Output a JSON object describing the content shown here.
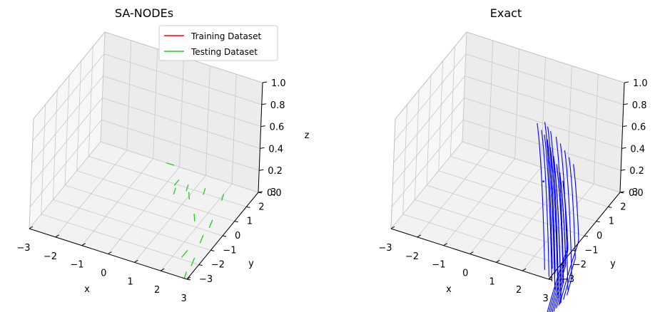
{
  "chart_data": [
    {
      "type": "line3d",
      "title": "SA-NODEs",
      "xlabel": "x",
      "ylabel": "y",
      "zlabel": "z",
      "xlim": [
        -3,
        3
      ],
      "ylim": [
        -3,
        3
      ],
      "zlim": [
        0,
        1
      ],
      "x_ticks": [
        "−3",
        "−2",
        "−1",
        "0",
        "1",
        "2",
        "3"
      ],
      "y_ticks": [
        "−3",
        "−2",
        "−1",
        "0",
        "1",
        "2",
        "3"
      ],
      "z_ticks": [
        "0.0",
        "0.2",
        "0.4",
        "0.6",
        "0.8",
        "1.0"
      ],
      "legend": {
        "placement": "top-right",
        "entries": [
          {
            "label": "Training Dataset",
            "color": "#ff0000"
          },
          {
            "label": "Testing Dataset",
            "color": "#22cc22"
          }
        ]
      },
      "series": [
        {
          "name": "Testing Dataset",
          "color": "#22cc22",
          "segments": [
            [
              [
                -0.2,
                3.0,
                0.0
              ],
              [
                -0.5,
                3.0,
                0.0
              ]
            ],
            [
              [
                0.3,
                2.3,
                0.0
              ],
              [
                0.3,
                1.9,
                0.0
              ]
            ],
            [
              [
                0.4,
                1.8,
                0.0
              ],
              [
                0.5,
                1.4,
                0.0
              ]
            ],
            [
              [
                0.7,
                2.2,
                0.0
              ],
              [
                0.8,
                1.8,
                0.0
              ]
            ],
            [
              [
                0.9,
                1.8,
                0.0
              ],
              [
                1.1,
                1.4,
                0.0
              ]
            ],
            [
              [
                1.3,
                2.3,
                0.0
              ],
              [
                1.4,
                1.9,
                0.0
              ]
            ],
            [
              [
                2.0,
                2.3,
                0.0
              ],
              [
                2.1,
                1.9,
                0.0
              ]
            ],
            [
              [
                1.6,
                0.7,
                0.0
              ],
              [
                1.8,
                0.3,
                0.0
              ]
            ],
            [
              [
                2.3,
                0.7,
                0.0
              ],
              [
                2.4,
                0.2,
                0.0
              ]
            ],
            [
              [
                2.4,
                -0.3,
                0.0
              ],
              [
                2.5,
                -0.8,
                0.0
              ]
            ],
            [
              [
                2.3,
                -1.4,
                0.0
              ],
              [
                2.3,
                -1.9,
                0.0
              ]
            ],
            [
              [
                2.7,
                -1.7,
                0.0
              ],
              [
                2.8,
                -2.2,
                0.0
              ]
            ],
            [
              [
                2.8,
                -2.6,
                0.0
              ],
              [
                2.9,
                -3.0,
                0.0
              ]
            ]
          ]
        }
      ]
    },
    {
      "type": "line3d",
      "title": "Exact",
      "xlabel": "x",
      "ylabel": "y",
      "zlabel": "",
      "xlim": [
        -3,
        3
      ],
      "ylim": [
        -3,
        3
      ],
      "zlim": [
        0,
        1
      ],
      "x_ticks": [
        "−3",
        "−2",
        "−1",
        "0",
        "1",
        "2",
        "3"
      ],
      "y_ticks": [
        "−3",
        "−2",
        "−1",
        "0",
        "1",
        "2",
        "3"
      ],
      "z_ticks": [
        "0.0",
        "0.2",
        "0.4",
        "0.6",
        "0.8",
        "1.0"
      ],
      "series": [
        {
          "color": "#0000ff",
          "start_points": [
            [
              -0.3,
              3.2
            ],
            [
              0.0,
              2.9
            ],
            [
              0.2,
              2.7
            ],
            [
              0.4,
              2.5
            ],
            [
              0.5,
              2.3
            ],
            [
              0.7,
              2.1
            ],
            [
              0.8,
              1.9
            ],
            [
              1.0,
              1.7
            ],
            [
              1.1,
              1.5
            ],
            [
              1.3,
              1.3
            ],
            [
              1.4,
              1.1
            ],
            [
              1.6,
              0.9
            ],
            [
              1.7,
              0.7
            ],
            [
              1.9,
              0.5
            ],
            [
              2.0,
              0.3
            ],
            [
              -0.1,
              3.4
            ],
            [
              0.1,
              3.2
            ],
            [
              0.3,
              3.0
            ],
            [
              0.6,
              2.8
            ],
            [
              0.9,
              2.5
            ],
            [
              1.2,
              2.2
            ],
            [
              1.5,
              1.9
            ],
            [
              1.8,
              1.6
            ]
          ],
          "direction": [
            2.2,
            -4.0
          ],
          "stray_point": [
            0.55,
            1.95
          ]
        }
      ]
    }
  ]
}
